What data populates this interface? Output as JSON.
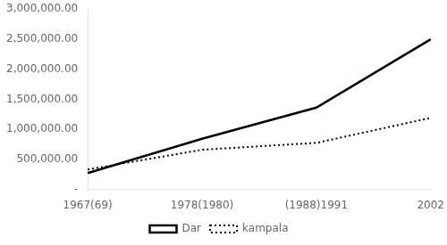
{
  "chart_data": {
    "type": "line",
    "categories": [
      "1967(69)",
      "1978(1980)",
      "(1988)1991",
      "2002"
    ],
    "series": [
      {
        "name": "Dar",
        "color": "black",
        "line_style": "solid",
        "values": [
          272821,
          843000,
          1360850,
          2497940
        ]
      },
      {
        "name": "kampala",
        "color": "black",
        "line_style": "dotted",
        "values": [
          330700,
          660000,
          774200,
          1189142
        ]
      }
    ],
    "ylim": [
      0,
      3000000
    ],
    "yticks": [
      {
        "value": 0,
        "label": "-"
      },
      {
        "value": 500000,
        "label": "500,000.00"
      },
      {
        "value": 1000000,
        "label": "1,000,000.00"
      },
      {
        "value": 1500000,
        "label": "1,500,000.00"
      },
      {
        "value": 2000000,
        "label": "2,000,000.00"
      },
      {
        "value": 2500000,
        "label": "2,500,000.00"
      },
      {
        "value": 3000000,
        "label": "3,000,000.00"
      }
    ],
    "grid": false,
    "legend": "bottom"
  }
}
